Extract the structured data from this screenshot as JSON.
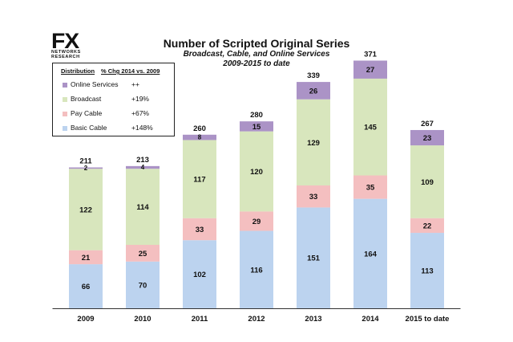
{
  "brand": {
    "logo_main": "FX",
    "logo_line1": "NETWORKS",
    "logo_line2": "RESEARCH"
  },
  "header": {
    "title": "Number of Scripted Original Series",
    "subtitle_line1": "Broadcast, Cable, and Online Services",
    "subtitle_line2": "2009-2015 to date"
  },
  "legend": {
    "col_distribution": "Distribution",
    "col_change": "% Chg 2014 vs. 2009",
    "items": [
      {
        "name": "Online Services",
        "change": "++",
        "color": "#ab93c6"
      },
      {
        "name": "Broadcast",
        "change": "+19%",
        "color": "#d8e6bd"
      },
      {
        "name": "Pay Cable",
        "change": "+67%",
        "color": "#f4bfc0"
      },
      {
        "name": "Basic Cable",
        "change": "+148%",
        "color": "#bcd3ef"
      }
    ]
  },
  "chart_data": {
    "type": "bar",
    "stacked": true,
    "title": "Number of Scripted Original Series",
    "subtitle": "Broadcast, Cable, and Online Services 2009-2015 to date",
    "categories": [
      "2009",
      "2010",
      "2011",
      "2012",
      "2013",
      "2014",
      "2015 to date"
    ],
    "series": [
      {
        "name": "Basic Cable",
        "color": "#bcd3ef",
        "values": [
          66,
          70,
          102,
          116,
          151,
          164,
          113
        ]
      },
      {
        "name": "Pay Cable",
        "color": "#f4bfc0",
        "values": [
          21,
          25,
          33,
          29,
          33,
          35,
          22
        ]
      },
      {
        "name": "Broadcast",
        "color": "#d8e6bd",
        "values": [
          122,
          114,
          117,
          120,
          129,
          145,
          109
        ]
      },
      {
        "name": "Online Services",
        "color": "#ab93c6",
        "values": [
          2,
          4,
          8,
          15,
          26,
          27,
          23
        ]
      }
    ],
    "totals": [
      211,
      213,
      260,
      280,
      339,
      371,
      267
    ],
    "ylim": [
      0,
      380
    ],
    "grid": false,
    "legend_position": "top-left"
  }
}
